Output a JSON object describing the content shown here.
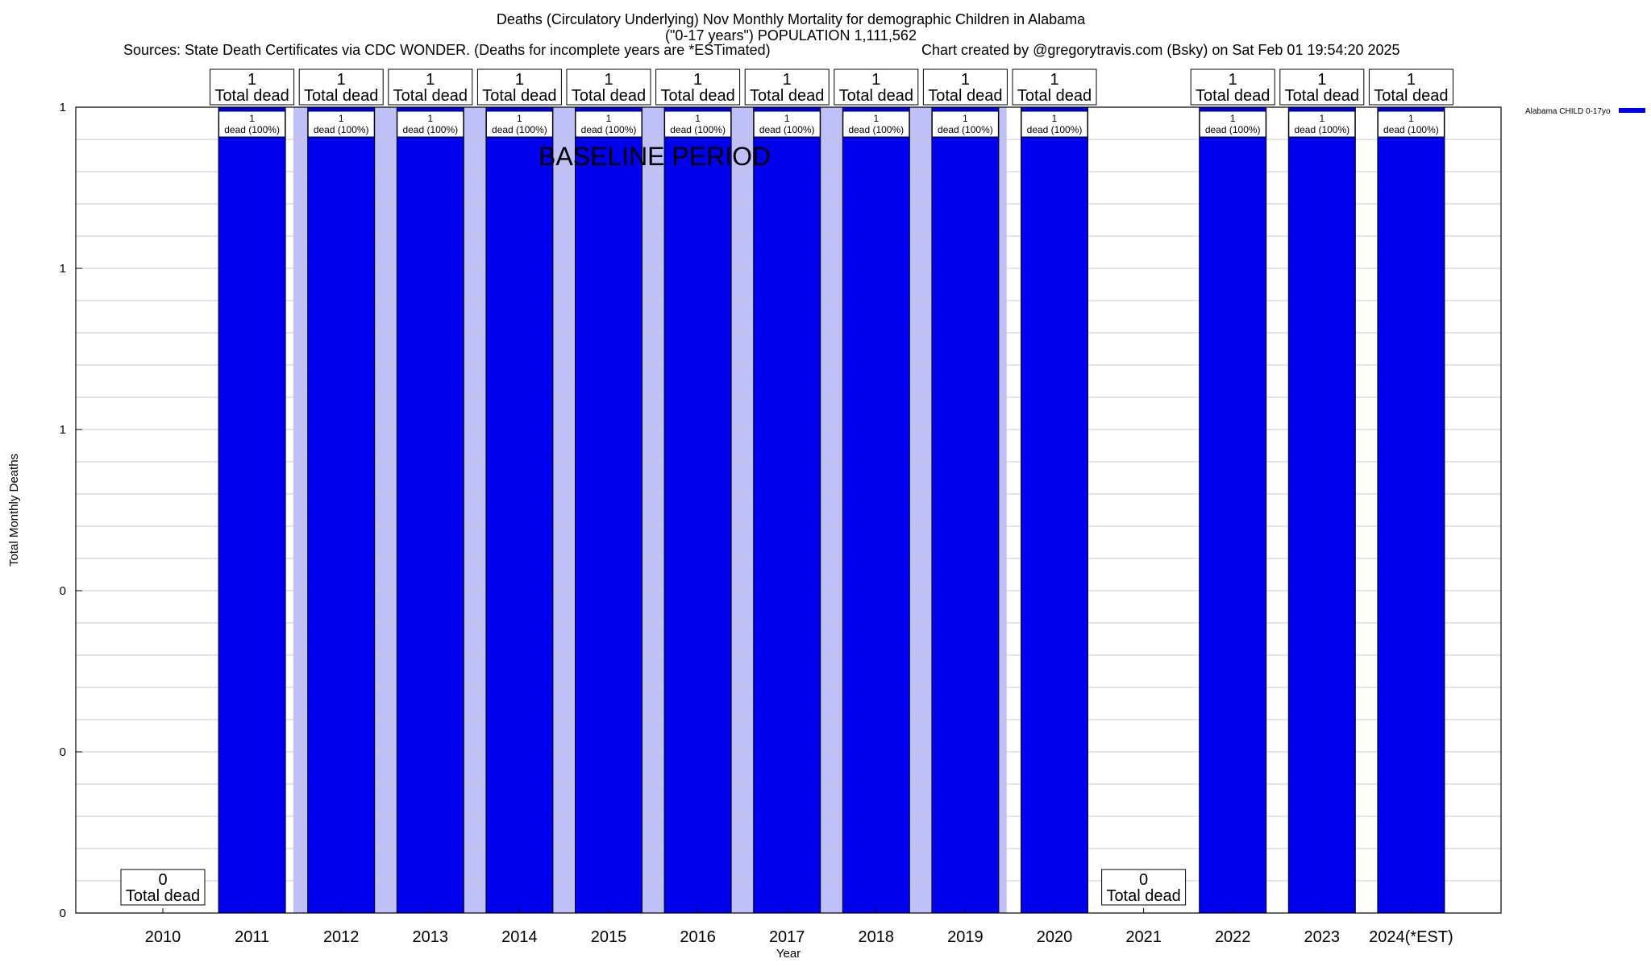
{
  "header": {
    "title_line1": "Deaths (Circulatory Underlying) Nov Monthly Mortality for demographic Children in Alabama",
    "title_line2": "(\"0-17 years\") POPULATION 1,111,562",
    "sources": "Sources: State Death Certificates via CDC WONDER. (Deaths for incomplete years are *ESTimated)",
    "credit": "Chart created by @gregorytravis.com (Bsky) on Sat Feb 01 19:54:20 2025"
  },
  "chart_data": {
    "type": "bar",
    "xlabel": "Year",
    "ylabel": "Total Monthly Deaths",
    "ylim": [
      0,
      1
    ],
    "y_tick_labels": [
      "0",
      "0",
      "0",
      "1",
      "1",
      "1"
    ],
    "grid": true,
    "legend": {
      "label": "Alabama CHILD 0-17yo",
      "position": "top-right"
    },
    "annotation": "BASELINE PERIOD",
    "baseline_years": [
      "2012",
      "2013",
      "2014",
      "2015",
      "2016",
      "2017",
      "2018",
      "2019"
    ],
    "categories": [
      "2010",
      "2011",
      "2012",
      "2013",
      "2014",
      "2015",
      "2016",
      "2017",
      "2018",
      "2019",
      "2020",
      "2021",
      "2022",
      "2023",
      "2024(*EST)"
    ],
    "series": [
      {
        "name": "Alabama CHILD 0-17yo",
        "values": [
          0,
          1,
          1,
          1,
          1,
          1,
          1,
          1,
          1,
          1,
          1,
          0,
          1,
          1,
          1
        ]
      }
    ],
    "top_labels": [
      {
        "count": "0",
        "text": "Total dead"
      },
      {
        "count": "1",
        "text": "Total dead"
      },
      {
        "count": "1",
        "text": "Total dead"
      },
      {
        "count": "1",
        "text": "Total dead"
      },
      {
        "count": "1",
        "text": "Total dead"
      },
      {
        "count": "1",
        "text": "Total dead"
      },
      {
        "count": "1",
        "text": "Total dead"
      },
      {
        "count": "1",
        "text": "Total dead"
      },
      {
        "count": "1",
        "text": "Total dead"
      },
      {
        "count": "1",
        "text": "Total dead"
      },
      {
        "count": "1",
        "text": "Total dead"
      },
      {
        "count": "0",
        "text": "Total dead"
      },
      {
        "count": "1",
        "text": "Total dead"
      },
      {
        "count": "1",
        "text": "Total dead"
      },
      {
        "count": "1",
        "text": "Total dead"
      }
    ],
    "inner_labels": [
      null,
      {
        "count": "1",
        "text": "dead (100%)"
      },
      {
        "count": "1",
        "text": "dead (100%)"
      },
      {
        "count": "1",
        "text": "dead (100%)"
      },
      {
        "count": "1",
        "text": "dead (100%)"
      },
      {
        "count": "1",
        "text": "dead (100%)"
      },
      {
        "count": "1",
        "text": "dead (100%)"
      },
      {
        "count": "1",
        "text": "dead (100%)"
      },
      {
        "count": "1",
        "text": "dead (100%)"
      },
      {
        "count": "1",
        "text": "dead (100%)"
      },
      {
        "count": "1",
        "text": "dead (100%)"
      },
      null,
      {
        "count": "1",
        "text": "dead (100%)"
      },
      {
        "count": "1",
        "text": "dead (100%)"
      },
      {
        "count": "1",
        "text": "dead (100%)"
      }
    ],
    "colors": {
      "bar": "#0000ee",
      "baseline": "#c0c0f8",
      "grid": "#c8c8c8"
    }
  }
}
